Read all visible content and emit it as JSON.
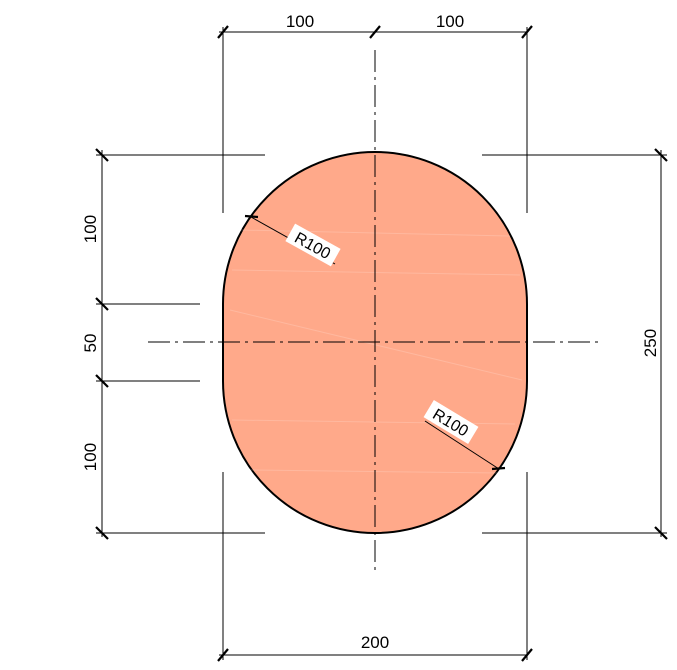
{
  "dimensions": {
    "top_left": "100",
    "top_right": "100",
    "bottom": "200",
    "left_top": "100",
    "left_middle": "50",
    "left_bottom": "100",
    "right": "250",
    "radius_upper": "R100",
    "radius_lower": "R100"
  },
  "colors": {
    "section_fill": "#FFA98A",
    "outline": "#000000"
  }
}
